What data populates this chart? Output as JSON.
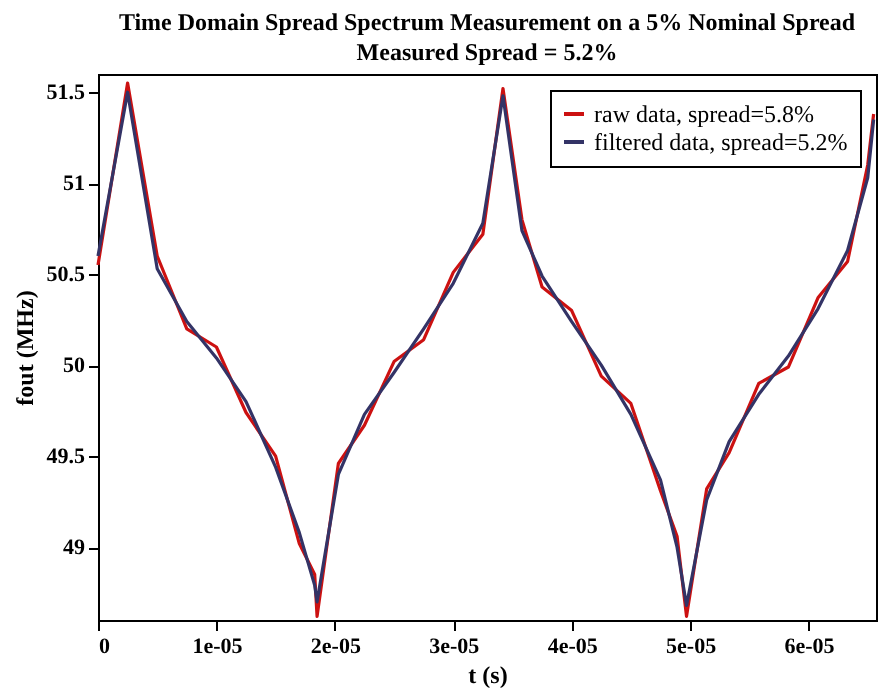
{
  "chart_data": {
    "type": "line",
    "title": "Time Domain Spread Spectrum Measurement on a 5% Nominal Spread",
    "subtitle": "Measured Spread = 5.2%",
    "xlabel": "t (s)",
    "ylabel": "fout (MHz)",
    "xlim": [
      0,
      6.57e-05
    ],
    "ylim": [
      48.6,
      51.6
    ],
    "xticks": [
      0,
      {
        "value": 1e-05,
        "label": "1e-05"
      },
      {
        "value": 2e-05,
        "label": "2e-05"
      },
      {
        "value": 3e-05,
        "label": "3e-05"
      },
      {
        "value": 4e-05,
        "label": "4e-05"
      },
      {
        "value": 5e-05,
        "label": "5e-05"
      },
      {
        "value": 6e-05,
        "label": "6e-05"
      }
    ],
    "yticks": [
      49,
      49.5,
      50,
      50.5,
      51,
      51.5
    ],
    "grid": false,
    "legend": "top right",
    "marker": "none",
    "line_style": "solid",
    "x": [
      0,
      2.5e-06,
      5e-06,
      7.5e-06,
      1e-05,
      1.25e-05,
      1.5e-05,
      1.7e-05,
      1.83e-05,
      1.85e-05,
      2.03e-05,
      2.25e-05,
      2.5e-05,
      2.75e-05,
      3e-05,
      3.25e-05,
      3.42e-05,
      3.58e-05,
      3.75e-05,
      4e-05,
      4.25e-05,
      4.5e-05,
      4.75e-05,
      4.89e-05,
      4.97e-05,
      5.14e-05,
      5.33e-05,
      5.58e-05,
      5.83e-05,
      6.08e-05,
      6.33e-05,
      6.5e-05,
      6.55e-05
    ],
    "series": [
      {
        "name": "raw data, spread=5.8%",
        "color": "#cc1111",
        "values": [
          50.55,
          51.55,
          50.6,
          50.2,
          50.1,
          49.74,
          49.5,
          49.02,
          48.85,
          48.62,
          49.46,
          49.67,
          50.02,
          50.14,
          50.51,
          50.72,
          51.52,
          50.8,
          50.43,
          50.3,
          49.94,
          49.79,
          49.31,
          49.06,
          48.62,
          49.32,
          49.52,
          49.9,
          49.99,
          50.37,
          50.57,
          51.1,
          51.38
        ]
      },
      {
        "name": "filtered data, spread=5.2%",
        "color": "#333366",
        "values": [
          50.6,
          51.5,
          50.53,
          50.24,
          50.04,
          49.8,
          49.44,
          49.08,
          48.79,
          48.7,
          49.4,
          49.73,
          49.96,
          50.2,
          50.45,
          50.78,
          51.48,
          50.74,
          50.49,
          50.24,
          50.0,
          49.73,
          49.37,
          49.0,
          48.68,
          49.26,
          49.58,
          49.84,
          50.05,
          50.31,
          50.63,
          51.03,
          51.35
        ]
      }
    ]
  }
}
